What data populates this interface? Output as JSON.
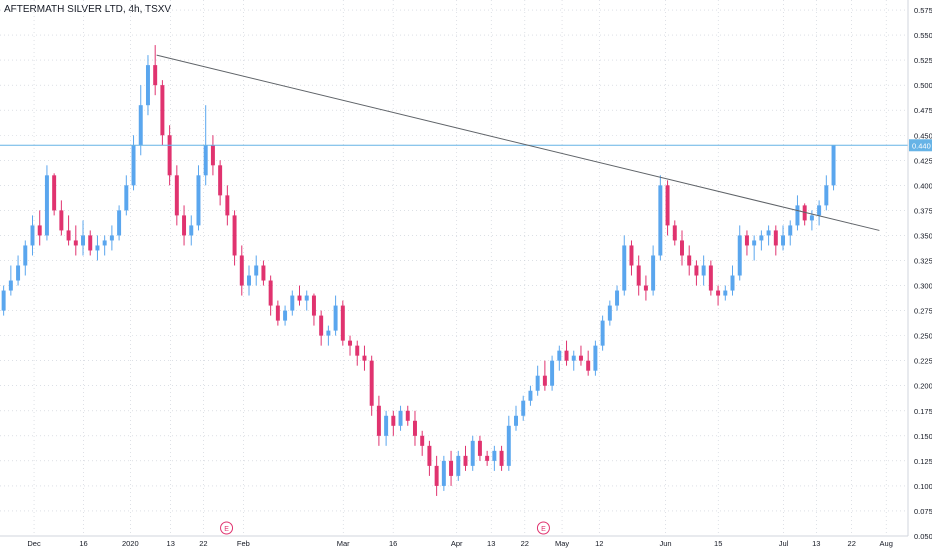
{
  "chart_data": {
    "type": "candlestick",
    "title": "AFTERMATH SILVER LTD, 4h, TSXV",
    "y_ticks": [
      "0.575",
      "0.550",
      "0.525",
      "0.500",
      "0.475",
      "0.450",
      "0.425",
      "0.400",
      "0.375",
      "0.350",
      "0.325",
      "0.300",
      "0.275",
      "0.250",
      "0.225",
      "0.200",
      "0.175",
      "0.150",
      "0.125",
      "0.100",
      "0.075",
      "0.050"
    ],
    "ylim": [
      0.05,
      0.585
    ],
    "x_ticks": [
      "Dec",
      "16",
      "2020",
      "13",
      "22",
      "Feb",
      "Mar",
      "16",
      "Apr",
      "13",
      "22",
      "May",
      "12",
      "Jun",
      "15",
      "Jul",
      "13",
      "22",
      "Aug"
    ],
    "price_label": "0.440",
    "horizontal_line": {
      "value": 0.44
    },
    "trendline": {
      "x0": 0.1725,
      "y0": 0.53,
      "x1": 0.9685,
      "y1": 0.355
    },
    "earnings_markers": [
      "E",
      "E"
    ],
    "colors": {
      "up": "#5aa6ee",
      "down": "#e0336f",
      "hline": "#66b3e6",
      "trend": "#5f6368",
      "grid": "#c8cdd6"
    },
    "candles": [
      [
        0.275,
        0.3,
        0.27,
        0.295
      ],
      [
        0.295,
        0.32,
        0.29,
        0.305
      ],
      [
        0.305,
        0.33,
        0.3,
        0.32
      ],
      [
        0.32,
        0.345,
        0.31,
        0.34
      ],
      [
        0.34,
        0.37,
        0.33,
        0.36
      ],
      [
        0.36,
        0.375,
        0.34,
        0.35
      ],
      [
        0.35,
        0.42,
        0.345,
        0.41
      ],
      [
        0.41,
        0.412,
        0.37,
        0.375
      ],
      [
        0.375,
        0.385,
        0.35,
        0.355
      ],
      [
        0.355,
        0.37,
        0.34,
        0.345
      ],
      [
        0.345,
        0.36,
        0.33,
        0.34
      ],
      [
        0.34,
        0.365,
        0.33,
        0.35
      ],
      [
        0.35,
        0.355,
        0.33,
        0.335
      ],
      [
        0.335,
        0.35,
        0.325,
        0.34
      ],
      [
        0.34,
        0.35,
        0.33,
        0.345
      ],
      [
        0.345,
        0.36,
        0.335,
        0.35
      ],
      [
        0.35,
        0.38,
        0.345,
        0.375
      ],
      [
        0.375,
        0.41,
        0.37,
        0.4
      ],
      [
        0.4,
        0.45,
        0.395,
        0.44
      ],
      [
        0.44,
        0.5,
        0.43,
        0.48
      ],
      [
        0.48,
        0.53,
        0.47,
        0.52
      ],
      [
        0.52,
        0.54,
        0.49,
        0.5
      ],
      [
        0.5,
        0.505,
        0.44,
        0.45
      ],
      [
        0.45,
        0.46,
        0.4,
        0.41
      ],
      [
        0.41,
        0.42,
        0.36,
        0.37
      ],
      [
        0.37,
        0.38,
        0.34,
        0.35
      ],
      [
        0.35,
        0.37,
        0.34,
        0.36
      ],
      [
        0.36,
        0.42,
        0.355,
        0.41
      ],
      [
        0.41,
        0.48,
        0.4,
        0.44
      ],
      [
        0.44,
        0.45,
        0.41,
        0.42
      ],
      [
        0.42,
        0.425,
        0.38,
        0.39
      ],
      [
        0.39,
        0.4,
        0.36,
        0.37
      ],
      [
        0.37,
        0.375,
        0.32,
        0.33
      ],
      [
        0.33,
        0.34,
        0.29,
        0.3
      ],
      [
        0.3,
        0.32,
        0.29,
        0.31
      ],
      [
        0.31,
        0.33,
        0.3,
        0.32
      ],
      [
        0.32,
        0.325,
        0.3,
        0.305
      ],
      [
        0.305,
        0.31,
        0.27,
        0.28
      ],
      [
        0.28,
        0.285,
        0.26,
        0.265
      ],
      [
        0.265,
        0.28,
        0.26,
        0.275
      ],
      [
        0.275,
        0.295,
        0.27,
        0.29
      ],
      [
        0.29,
        0.3,
        0.28,
        0.285
      ],
      [
        0.285,
        0.295,
        0.275,
        0.29
      ],
      [
        0.29,
        0.292,
        0.26,
        0.27
      ],
      [
        0.27,
        0.275,
        0.24,
        0.25
      ],
      [
        0.25,
        0.26,
        0.24,
        0.255
      ],
      [
        0.255,
        0.29,
        0.25,
        0.28
      ],
      [
        0.28,
        0.285,
        0.24,
        0.245
      ],
      [
        0.245,
        0.25,
        0.23,
        0.24
      ],
      [
        0.24,
        0.245,
        0.22,
        0.23
      ],
      [
        0.23,
        0.24,
        0.215,
        0.225
      ],
      [
        0.225,
        0.23,
        0.17,
        0.18
      ],
      [
        0.18,
        0.19,
        0.14,
        0.15
      ],
      [
        0.15,
        0.175,
        0.14,
        0.17
      ],
      [
        0.17,
        0.175,
        0.15,
        0.16
      ],
      [
        0.16,
        0.18,
        0.155,
        0.175
      ],
      [
        0.175,
        0.18,
        0.16,
        0.165
      ],
      [
        0.165,
        0.175,
        0.14,
        0.15
      ],
      [
        0.15,
        0.155,
        0.13,
        0.14
      ],
      [
        0.14,
        0.145,
        0.11,
        0.12
      ],
      [
        0.12,
        0.13,
        0.09,
        0.1
      ],
      [
        0.1,
        0.13,
        0.095,
        0.125
      ],
      [
        0.125,
        0.135,
        0.1,
        0.11
      ],
      [
        0.11,
        0.135,
        0.105,
        0.13
      ],
      [
        0.13,
        0.14,
        0.115,
        0.12
      ],
      [
        0.12,
        0.15,
        0.115,
        0.145
      ],
      [
        0.145,
        0.15,
        0.125,
        0.13
      ],
      [
        0.13,
        0.135,
        0.12,
        0.125
      ],
      [
        0.125,
        0.14,
        0.115,
        0.135
      ],
      [
        0.135,
        0.14,
        0.115,
        0.12
      ],
      [
        0.12,
        0.17,
        0.115,
        0.16
      ],
      [
        0.16,
        0.18,
        0.155,
        0.17
      ],
      [
        0.17,
        0.19,
        0.165,
        0.185
      ],
      [
        0.185,
        0.2,
        0.18,
        0.195
      ],
      [
        0.195,
        0.22,
        0.19,
        0.21
      ],
      [
        0.21,
        0.225,
        0.195,
        0.2
      ],
      [
        0.2,
        0.23,
        0.195,
        0.225
      ],
      [
        0.225,
        0.24,
        0.215,
        0.235
      ],
      [
        0.235,
        0.245,
        0.22,
        0.225
      ],
      [
        0.225,
        0.235,
        0.215,
        0.23
      ],
      [
        0.23,
        0.24,
        0.22,
        0.225
      ],
      [
        0.225,
        0.235,
        0.21,
        0.215
      ],
      [
        0.215,
        0.245,
        0.21,
        0.24
      ],
      [
        0.24,
        0.27,
        0.235,
        0.265
      ],
      [
        0.265,
        0.285,
        0.26,
        0.28
      ],
      [
        0.28,
        0.3,
        0.275,
        0.295
      ],
      [
        0.295,
        0.35,
        0.29,
        0.34
      ],
      [
        0.34,
        0.345,
        0.31,
        0.32
      ],
      [
        0.32,
        0.33,
        0.29,
        0.3
      ],
      [
        0.3,
        0.31,
        0.285,
        0.295
      ],
      [
        0.295,
        0.34,
        0.29,
        0.33
      ],
      [
        0.33,
        0.41,
        0.325,
        0.4
      ],
      [
        0.4,
        0.405,
        0.35,
        0.36
      ],
      [
        0.36,
        0.365,
        0.34,
        0.345
      ],
      [
        0.345,
        0.355,
        0.32,
        0.33
      ],
      [
        0.33,
        0.34,
        0.31,
        0.32
      ],
      [
        0.32,
        0.325,
        0.3,
        0.31
      ],
      [
        0.31,
        0.33,
        0.3,
        0.32
      ],
      [
        0.32,
        0.325,
        0.29,
        0.295
      ],
      [
        0.295,
        0.3,
        0.28,
        0.29
      ],
      [
        0.29,
        0.3,
        0.285,
        0.295
      ],
      [
        0.295,
        0.32,
        0.29,
        0.31
      ],
      [
        0.31,
        0.36,
        0.305,
        0.35
      ],
      [
        0.35,
        0.355,
        0.33,
        0.34
      ],
      [
        0.34,
        0.35,
        0.325,
        0.345
      ],
      [
        0.345,
        0.355,
        0.335,
        0.35
      ],
      [
        0.35,
        0.36,
        0.34,
        0.355
      ],
      [
        0.355,
        0.36,
        0.33,
        0.34
      ],
      [
        0.34,
        0.36,
        0.335,
        0.35
      ],
      [
        0.35,
        0.365,
        0.34,
        0.36
      ],
      [
        0.36,
        0.39,
        0.355,
        0.38
      ],
      [
        0.38,
        0.382,
        0.36,
        0.365
      ],
      [
        0.365,
        0.375,
        0.355,
        0.37
      ],
      [
        0.37,
        0.385,
        0.36,
        0.38
      ],
      [
        0.38,
        0.41,
        0.375,
        0.4
      ],
      [
        0.4,
        0.44,
        0.395,
        0.44
      ]
    ]
  }
}
